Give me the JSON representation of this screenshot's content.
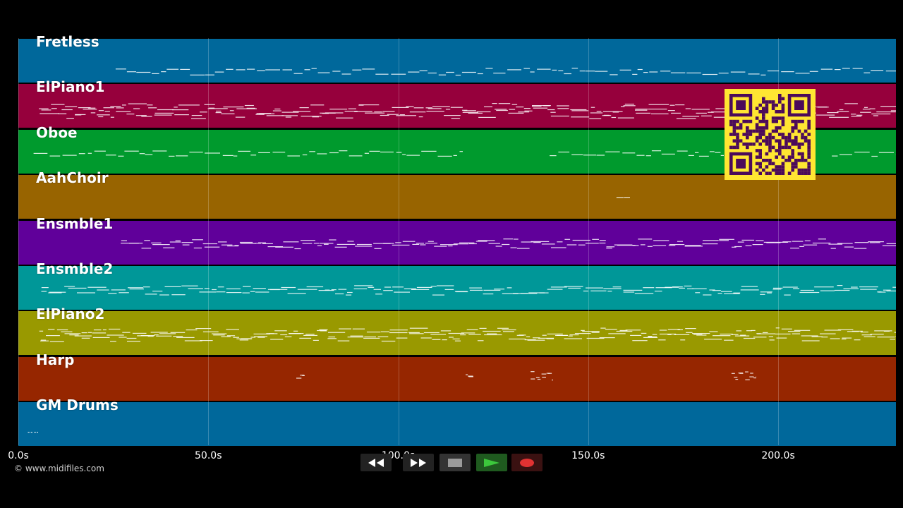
{
  "player": {
    "tracks": [
      {
        "name": "Fretless",
        "color": "#00689b"
      },
      {
        "name": "ElPiano1",
        "color": "#96003c"
      },
      {
        "name": "Oboe",
        "color": "#009a2d"
      },
      {
        "name": "AahChoir",
        "color": "#986400"
      },
      {
        "name": "Ensmble1",
        "color": "#60009a"
      },
      {
        "name": "Ensmble2",
        "color": "#009798"
      },
      {
        "name": "ElPiano2",
        "color": "#999900"
      },
      {
        "name": "Harp",
        "color": "#962600"
      },
      {
        "name": "GM Drums",
        "color": "#00689b"
      }
    ],
    "time_axis": {
      "ticks": [
        "0.0s",
        "50.0s",
        "100.0s",
        "150.0s",
        "200.0s"
      ],
      "min": 0,
      "max": 231
    },
    "copyright": "© www.midifiles.com",
    "transport": {
      "buttons": [
        {
          "name": "rewind",
          "icon": "rewind-icon"
        },
        {
          "name": "fast-forward",
          "icon": "fast-forward-icon"
        },
        {
          "name": "stop",
          "icon": "stop-icon"
        },
        {
          "name": "play",
          "icon": "play-icon",
          "accent": "#3cc83c"
        },
        {
          "name": "record",
          "icon": "record-icon",
          "accent": "#e03232"
        }
      ]
    },
    "qr_code": {
      "color": "#4b0a5a",
      "background": "#ffe632"
    }
  }
}
